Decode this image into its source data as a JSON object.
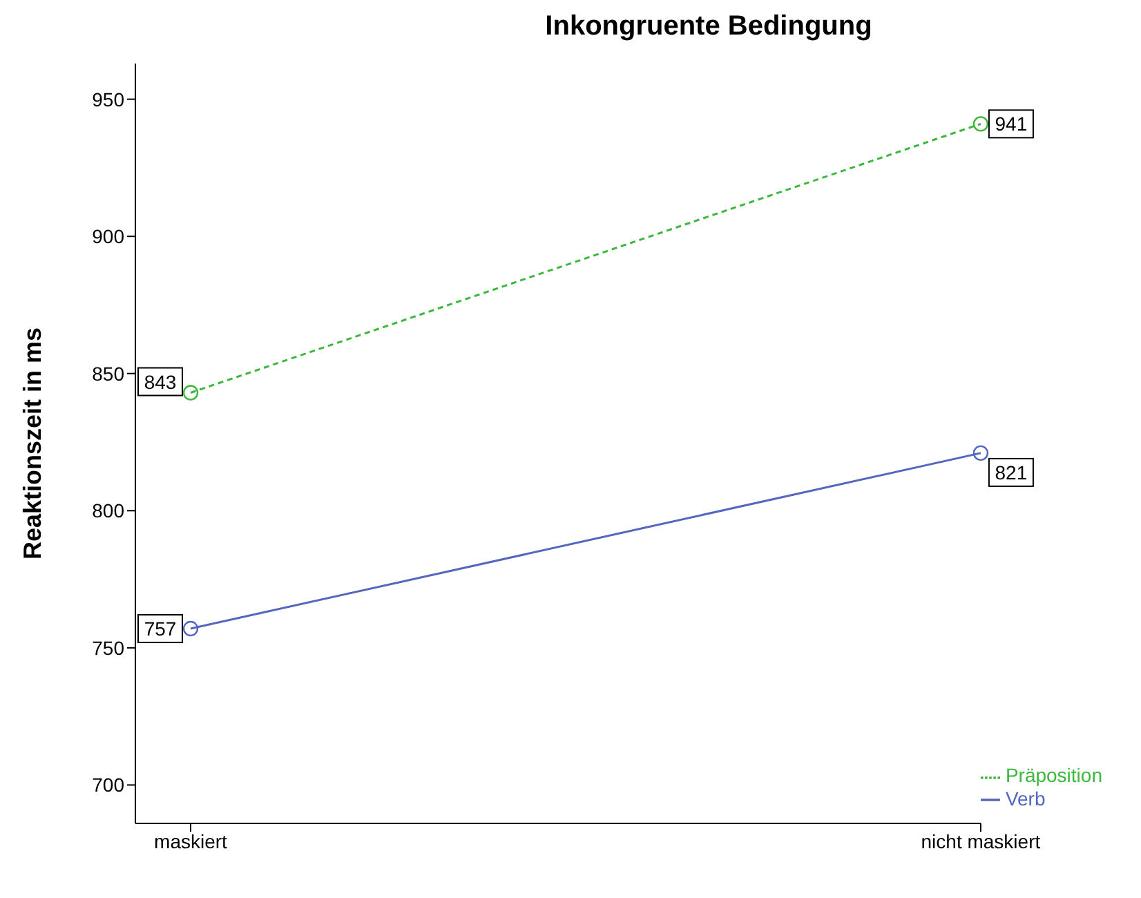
{
  "chart_data": {
    "type": "line",
    "title": "Inkongruente Bedingung",
    "ylabel": "Reaktionszeit in ms",
    "categories": [
      "maskiert",
      "nicht maskiert"
    ],
    "series": [
      {
        "name": "Verb",
        "color": "#5566c0",
        "values": [
          757,
          821
        ],
        "line_style": "solid"
      },
      {
        "name": "Präposition",
        "color": "#3cb83c",
        "values": [
          843,
          941
        ],
        "line_style": "dashed"
      }
    ],
    "ylim": [
      686,
      963
    ],
    "yticks": [
      700,
      750,
      800,
      850,
      900,
      950
    ],
    "marker": "circle",
    "data_labels": true,
    "grid": false,
    "legend": "bottom right"
  }
}
